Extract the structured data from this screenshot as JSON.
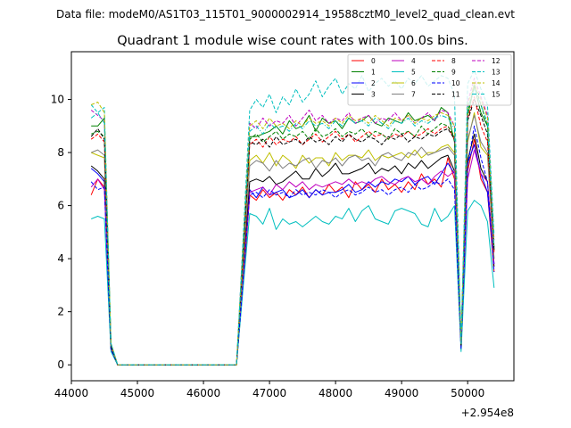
{
  "figure": {
    "suptitle": "Data file: modeM0/AS1T03_115T01_9000002914_19588cztM0_level2_quad_clean.evt"
  },
  "chart_data": {
    "type": "line",
    "title": "Quadrant 1 module wise count rates with 100.0s bins.",
    "xlabel": "",
    "ylabel": "",
    "x_offset_label": "+2.954e8",
    "xlim": [
      44000,
      50700
    ],
    "ylim": [
      -0.6,
      11.8
    ],
    "xticks": [
      44000,
      45000,
      46000,
      47000,
      48000,
      49000,
      50000
    ],
    "yticks": [
      0,
      2,
      4,
      6,
      8,
      10
    ],
    "xtick_labels": [
      "44000",
      "45000",
      "46000",
      "47000",
      "48000",
      "49000",
      "50000"
    ],
    "ytick_labels": [
      "0",
      "2",
      "4",
      "6",
      "8",
      "10"
    ],
    "grid": false,
    "legend_placement": "top-right",
    "legend_columns": 4,
    "x": [
      44300,
      44400,
      44500,
      44600,
      44700,
      44800,
      44900,
      45000,
      45100,
      45200,
      45300,
      45400,
      45500,
      45600,
      45700,
      45800,
      45900,
      46000,
      46100,
      46200,
      46300,
      46400,
      46500,
      46600,
      46700,
      46800,
      46900,
      47000,
      47100,
      47200,
      47300,
      47400,
      47500,
      47600,
      47700,
      47800,
      47900,
      48000,
      48100,
      48200,
      48300,
      48400,
      48500,
      48600,
      48700,
      48800,
      48900,
      49000,
      49100,
      49200,
      49300,
      49400,
      49500,
      49600,
      49700,
      49800,
      49900,
      50000,
      50100,
      50200,
      50300,
      50400
    ],
    "series": [
      {
        "name": "0",
        "color": "#ff0000",
        "dash": "solid",
        "values": [
          6.4,
          7.0,
          6.7,
          0.6,
          0,
          0,
          0,
          0,
          0,
          0,
          0,
          0,
          0,
          0,
          0,
          0,
          0,
          0,
          0,
          0,
          0,
          0,
          0,
          3.0,
          6.4,
          6.2,
          6.6,
          6.3,
          6.5,
          6.2,
          6.6,
          6.4,
          6.7,
          6.3,
          6.6,
          6.4,
          6.8,
          6.5,
          6.7,
          6.3,
          6.9,
          6.6,
          6.8,
          6.5,
          7.0,
          6.6,
          6.8,
          6.5,
          6.9,
          6.6,
          7.2,
          6.8,
          7.0,
          6.7,
          7.8,
          7.0,
          0.6,
          7.3,
          8.5,
          7.0,
          6.5,
          3.5
        ]
      },
      {
        "name": "1",
        "color": "#008000",
        "dash": "solid",
        "values": [
          9.0,
          9.0,
          9.3,
          0.8,
          0,
          0,
          0,
          0,
          0,
          0,
          0,
          0,
          0,
          0,
          0,
          0,
          0,
          0,
          0,
          0,
          0,
          0,
          0,
          4.4,
          8.6,
          8.6,
          8.7,
          8.8,
          9.0,
          8.7,
          9.2,
          8.9,
          9.0,
          9.4,
          8.8,
          9.3,
          9.1,
          9.2,
          8.9,
          9.3,
          9.1,
          9.2,
          9.4,
          9.1,
          9.0,
          9.3,
          9.2,
          9.1,
          9.5,
          9.2,
          9.3,
          9.4,
          9.2,
          9.7,
          9.5,
          8.4,
          0.9,
          9.4,
          10.5,
          9.5,
          9.0,
          4.3
        ]
      },
      {
        "name": "2",
        "color": "#0000ff",
        "dash": "solid",
        "values": [
          7.4,
          7.2,
          6.9,
          0.6,
          0,
          0,
          0,
          0,
          0,
          0,
          0,
          0,
          0,
          0,
          0,
          0,
          0,
          0,
          0,
          0,
          0,
          0,
          0,
          3.3,
          6.6,
          6.3,
          6.7,
          6.4,
          6.5,
          6.6,
          6.3,
          6.4,
          6.6,
          6.3,
          6.6,
          6.4,
          6.5,
          6.5,
          6.6,
          6.8,
          6.5,
          6.6,
          6.9,
          6.7,
          6.9,
          6.8,
          7.0,
          6.9,
          7.1,
          6.8,
          7.0,
          7.1,
          6.8,
          7.2,
          7.6,
          7.2,
          0.6,
          7.6,
          8.3,
          7.2,
          6.5,
          3.8
        ]
      },
      {
        "name": "3",
        "color": "#000000",
        "dash": "solid",
        "values": [
          7.5,
          7.3,
          7.0,
          0.6,
          0,
          0,
          0,
          0,
          0,
          0,
          0,
          0,
          0,
          0,
          0,
          0,
          0,
          0,
          0,
          0,
          0,
          0,
          0,
          3.5,
          6.9,
          7.0,
          6.9,
          7.1,
          6.8,
          6.9,
          7.1,
          7.3,
          7.0,
          7.0,
          7.4,
          7.1,
          7.3,
          7.6,
          7.2,
          7.2,
          7.3,
          7.4,
          7.6,
          7.2,
          7.4,
          7.3,
          7.5,
          7.2,
          7.6,
          7.4,
          7.7,
          7.4,
          7.6,
          7.8,
          7.9,
          7.3,
          0.6,
          7.7,
          8.7,
          7.4,
          6.9,
          3.7
        ]
      },
      {
        "name": "4",
        "color": "#bf00bf",
        "dash": "solid",
        "values": [
          6.7,
          7.0,
          6.6,
          0.6,
          0,
          0,
          0,
          0,
          0,
          0,
          0,
          0,
          0,
          0,
          0,
          0,
          0,
          0,
          0,
          0,
          0,
          0,
          0,
          3.3,
          6.5,
          6.6,
          6.7,
          6.4,
          6.8,
          6.6,
          6.9,
          6.7,
          6.9,
          6.6,
          6.8,
          6.7,
          6.8,
          6.9,
          6.8,
          7.0,
          6.8,
          6.9,
          6.8,
          7.0,
          7.1,
          6.9,
          6.8,
          7.0,
          7.1,
          6.9,
          7.0,
          6.8,
          7.1,
          7.3,
          7.1,
          7.3,
          0.6,
          7.0,
          8.1,
          7.2,
          6.9,
          3.8
        ]
      },
      {
        "name": "5",
        "color": "#00bfbf",
        "dash": "solid",
        "values": [
          5.5,
          5.6,
          5.5,
          0.5,
          0,
          0,
          0,
          0,
          0,
          0,
          0,
          0,
          0,
          0,
          0,
          0,
          0,
          0,
          0,
          0,
          0,
          0,
          0,
          2.9,
          5.7,
          5.6,
          5.3,
          5.9,
          5.1,
          5.5,
          5.3,
          5.4,
          5.2,
          5.4,
          5.6,
          5.4,
          5.3,
          5.6,
          5.5,
          5.9,
          5.4,
          5.8,
          6.0,
          5.5,
          5.4,
          5.3,
          5.8,
          5.9,
          5.8,
          5.7,
          5.3,
          5.2,
          5.9,
          5.4,
          5.6,
          6.0,
          0.5,
          5.8,
          6.2,
          6.0,
          5.4,
          2.9
        ]
      },
      {
        "name": "6",
        "color": "#bfbf00",
        "dash": "solid",
        "values": [
          8.0,
          7.9,
          7.8,
          0.7,
          0,
          0,
          0,
          0,
          0,
          0,
          0,
          0,
          0,
          0,
          0,
          0,
          0,
          0,
          0,
          0,
          0,
          0,
          0,
          3.8,
          7.7,
          7.9,
          7.6,
          8.0,
          7.5,
          7.9,
          7.7,
          7.4,
          7.9,
          7.6,
          7.8,
          7.8,
          7.5,
          8.0,
          7.7,
          7.9,
          7.9,
          7.8,
          8.1,
          7.7,
          7.9,
          7.8,
          7.9,
          8.0,
          7.8,
          8.1,
          7.8,
          8.0,
          8.0,
          8.2,
          8.3,
          8.0,
          0.7,
          8.4,
          9.5,
          8.2,
          7.9,
          4.0
        ]
      },
      {
        "name": "7",
        "color": "#808080",
        "dash": "solid",
        "values": [
          8.0,
          8.1,
          7.9,
          0.7,
          0,
          0,
          0,
          0,
          0,
          0,
          0,
          0,
          0,
          0,
          0,
          0,
          0,
          0,
          0,
          0,
          0,
          0,
          0,
          4.0,
          7.5,
          7.7,
          7.6,
          7.3,
          7.7,
          7.4,
          7.6,
          7.5,
          7.7,
          7.8,
          7.4,
          7.7,
          7.6,
          7.8,
          7.5,
          7.8,
          7.9,
          7.7,
          7.8,
          7.5,
          7.9,
          8.0,
          7.8,
          7.7,
          8.0,
          7.9,
          8.2,
          7.9,
          8.0,
          8.1,
          8.2,
          7.9,
          0.7,
          8.5,
          9.4,
          8.4,
          8.0,
          4.0
        ]
      },
      {
        "name": "8",
        "color": "#ff0000",
        "dash": "dashed",
        "values": [
          8.5,
          8.7,
          8.4,
          0.7,
          0,
          0,
          0,
          0,
          0,
          0,
          0,
          0,
          0,
          0,
          0,
          0,
          0,
          0,
          0,
          0,
          0,
          0,
          0,
          4.1,
          8.3,
          8.5,
          8.2,
          8.6,
          8.3,
          8.5,
          8.4,
          8.6,
          8.3,
          8.5,
          8.7,
          8.4,
          8.6,
          8.8,
          8.5,
          8.7,
          8.4,
          8.6,
          8.8,
          8.6,
          8.7,
          8.5,
          8.7,
          8.6,
          8.8,
          8.6,
          8.7,
          8.9,
          8.7,
          8.9,
          9.0,
          8.5,
          0.7,
          9.3,
          10.1,
          9.0,
          8.4,
          4.2
        ]
      },
      {
        "name": "9",
        "color": "#008000",
        "dash": "dashed",
        "values": [
          8.7,
          8.8,
          8.6,
          0.7,
          0,
          0,
          0,
          0,
          0,
          0,
          0,
          0,
          0,
          0,
          0,
          0,
          0,
          0,
          0,
          0,
          0,
          0,
          0,
          4.3,
          8.5,
          8.7,
          8.4,
          8.6,
          8.8,
          8.5,
          8.7,
          8.6,
          8.8,
          8.5,
          8.9,
          8.6,
          8.7,
          8.9,
          8.6,
          8.8,
          8.7,
          8.9,
          8.6,
          8.8,
          8.7,
          8.5,
          8.9,
          8.7,
          8.8,
          8.6,
          9.0,
          8.7,
          8.9,
          9.1,
          9.0,
          8.6,
          0.7,
          9.5,
          10.6,
          9.8,
          9.0,
          4.4
        ]
      },
      {
        "name": "10",
        "color": "#0000ff",
        "dash": "dashed",
        "values": [
          6.9,
          6.6,
          6.7,
          0.6,
          0,
          0,
          0,
          0,
          0,
          0,
          0,
          0,
          0,
          0,
          0,
          0,
          0,
          0,
          0,
          0,
          0,
          0,
          0,
          3.2,
          6.4,
          6.5,
          6.3,
          6.6,
          6.4,
          6.5,
          6.3,
          6.6,
          6.4,
          6.5,
          6.4,
          6.6,
          6.5,
          6.3,
          6.5,
          6.6,
          6.4,
          6.5,
          6.7,
          6.5,
          6.6,
          6.4,
          6.6,
          6.7,
          6.5,
          6.8,
          6.6,
          6.7,
          6.9,
          6.8,
          7.0,
          6.6,
          0.6,
          7.5,
          9.0,
          7.8,
          6.9,
          3.5
        ]
      },
      {
        "name": "11",
        "color": "#000000",
        "dash": "dashed",
        "values": [
          8.6,
          8.9,
          8.5,
          0.7,
          0,
          0,
          0,
          0,
          0,
          0,
          0,
          0,
          0,
          0,
          0,
          0,
          0,
          0,
          0,
          0,
          0,
          0,
          0,
          4.2,
          8.4,
          8.3,
          8.5,
          8.2,
          8.6,
          8.3,
          8.4,
          8.5,
          8.3,
          8.6,
          8.4,
          8.5,
          8.3,
          8.6,
          8.4,
          8.7,
          8.5,
          8.4,
          8.6,
          8.5,
          8.3,
          8.6,
          8.5,
          8.7,
          8.4,
          8.6,
          8.5,
          8.7,
          8.6,
          8.8,
          8.9,
          8.5,
          0.7,
          9.2,
          10.0,
          9.4,
          8.7,
          4.3
        ]
      },
      {
        "name": "12",
        "color": "#bf00bf",
        "dash": "dashed",
        "values": [
          9.6,
          9.4,
          9.2,
          0.8,
          0,
          0,
          0,
          0,
          0,
          0,
          0,
          0,
          0,
          0,
          0,
          0,
          0,
          0,
          0,
          0,
          0,
          0,
          0,
          4.6,
          9.1,
          8.9,
          9.3,
          9.0,
          9.2,
          9.1,
          9.4,
          9.0,
          9.3,
          9.6,
          9.2,
          9.4,
          9.1,
          9.3,
          9.2,
          9.5,
          9.1,
          9.3,
          9.4,
          9.1,
          9.3,
          9.2,
          9.5,
          9.2,
          9.4,
          9.1,
          9.3,
          9.5,
          9.2,
          9.6,
          9.5,
          9.0,
          0.8,
          9.9,
          10.8,
          10.1,
          9.4,
          4.7
        ]
      },
      {
        "name": "13",
        "color": "#00bfbf",
        "dash": "dashed",
        "values": [
          9.8,
          9.5,
          9.7,
          0.8,
          0,
          0,
          0,
          0,
          0,
          0,
          0,
          0,
          0,
          0,
          0,
          0,
          0,
          0,
          0,
          0,
          0,
          0,
          0,
          4.8,
          9.6,
          10.0,
          9.7,
          10.2,
          9.5,
          10.1,
          9.8,
          10.4,
          9.9,
          10.2,
          10.7,
          10.1,
          10.5,
          10.8,
          10.2,
          10.6,
          10.4,
          10.9,
          10.3,
          10.6,
          10.8,
          10.5,
          10.7,
          10.4,
          10.8,
          10.6,
          10.9,
          10.5,
          10.7,
          10.9,
          10.8,
          10.2,
          0.9,
          10.6,
          11.1,
          10.4,
          9.8,
          4.9
        ]
      },
      {
        "name": "14",
        "color": "#bfbf00",
        "dash": "dashed",
        "values": [
          9.8,
          9.9,
          9.5,
          0.8,
          0,
          0,
          0,
          0,
          0,
          0,
          0,
          0,
          0,
          0,
          0,
          0,
          0,
          0,
          0,
          0,
          0,
          0,
          0,
          4.5,
          9.0,
          9.2,
          8.9,
          9.3,
          9.0,
          9.1,
          8.9,
          9.2,
          9.0,
          9.3,
          9.1,
          9.2,
          9.0,
          9.3,
          9.1,
          9.4,
          9.2,
          9.3,
          9.1,
          9.4,
          9.2,
          9.0,
          9.3,
          9.2,
          9.4,
          9.1,
          9.3,
          9.2,
          9.4,
          9.5,
          9.4,
          9.0,
          0.8,
          9.8,
          10.6,
          10.0,
          9.3,
          4.5
        ]
      },
      {
        "name": "15",
        "color": "#00bfbf",
        "dash": "dashdot",
        "values": [
          9.3,
          9.5,
          9.1,
          0.8,
          0,
          0,
          0,
          0,
          0,
          0,
          0,
          0,
          0,
          0,
          0,
          0,
          0,
          0,
          0,
          0,
          0,
          0,
          0,
          4.4,
          8.8,
          9.0,
          8.7,
          9.1,
          8.9,
          9.0,
          8.8,
          9.1,
          8.9,
          9.2,
          9.0,
          9.1,
          8.9,
          9.2,
          9.0,
          9.3,
          9.1,
          9.2,
          9.0,
          9.3,
          9.1,
          8.9,
          9.2,
          9.1,
          9.3,
          9.0,
          9.2,
          9.1,
          9.3,
          9.4,
          9.3,
          8.9,
          0.8,
          9.7,
          10.4,
          9.8,
          9.1,
          4.4
        ]
      }
    ]
  }
}
